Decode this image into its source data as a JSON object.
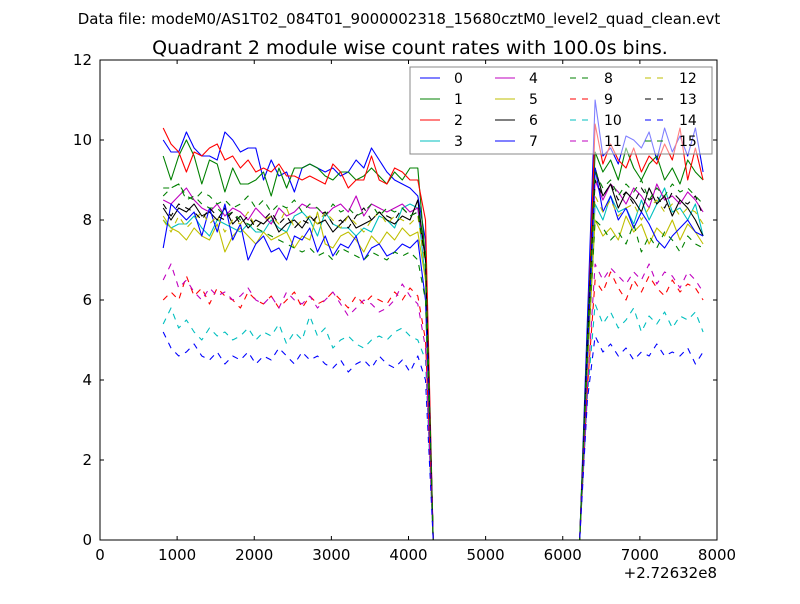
{
  "suptitle": "Data file: modeM0/AS1T02_084T01_9000002318_15680cztM0_level2_quad_clean.evt",
  "chart_data": {
    "type": "line",
    "title": "Quadrant 2 module wise count rates with 100.0s bins.",
    "xlabel": "",
    "ylabel": "",
    "x_offset_text": "+2.72632e8",
    "xlim": [
      0,
      8000
    ],
    "ylim": [
      0,
      12
    ],
    "xticks": [
      0,
      1000,
      2000,
      3000,
      4000,
      5000,
      6000,
      7000,
      8000
    ],
    "yticks": [
      0,
      2,
      4,
      6,
      8,
      10,
      12
    ],
    "x_start": 820,
    "x_step": 100,
    "grid": false,
    "legend_position": "top-right",
    "legend_columns": 4,
    "series": [
      {
        "name": "0",
        "color": "#0000ff",
        "dash": false,
        "values": [
          10.0,
          9.7,
          9.7,
          10.2,
          9.8,
          9.6,
          9.6,
          9.5,
          10.2,
          10.0,
          9.7,
          9.8,
          9.8,
          9.0,
          9.5,
          9.1,
          9.2,
          8.7,
          9.3,
          9.4,
          9.3,
          9.2,
          9.3,
          9.1,
          9.2,
          9.5,
          9.3,
          9.8,
          9.5,
          9.2,
          9.0,
          8.9,
          8.8,
          8.6,
          7.5,
          0,
          0,
          0,
          0,
          0,
          0,
          0,
          0,
          0,
          0,
          0,
          0,
          0,
          0,
          0,
          0,
          0,
          0,
          0,
          0,
          5.5,
          11.0,
          9.6,
          9.8,
          9.4,
          10.1,
          10.0,
          9.8,
          10.2,
          9.5,
          10.3,
          9.7,
          10.1,
          9.6,
          10.3,
          9.2
        ]
      },
      {
        "name": "1",
        "color": "#008000",
        "dash": false,
        "values": [
          9.6,
          9.0,
          9.6,
          10.0,
          9.6,
          8.9,
          9.5,
          9.4,
          8.7,
          9.3,
          8.9,
          8.9,
          9.0,
          9.2,
          8.6,
          9.3,
          8.8,
          9.3,
          9.3,
          9.4,
          9.3,
          9.1,
          9.0,
          9.2,
          9.2,
          9.0,
          9.1,
          9.3,
          9.1,
          8.9,
          9.2,
          9.0,
          9.3,
          9.3,
          7.0,
          0,
          0,
          0,
          0,
          0,
          0,
          0,
          0,
          0,
          0,
          0,
          0,
          0,
          0,
          0,
          0,
          0,
          0,
          0,
          0,
          5.0,
          9.7,
          9.2,
          9.5,
          9.0,
          9.8,
          9.3,
          9.0,
          9.4,
          9.6,
          9.0,
          9.3,
          8.9,
          9.5,
          9.2,
          9.0
        ]
      },
      {
        "name": "2",
        "color": "#ff0000",
        "dash": false,
        "values": [
          10.3,
          9.9,
          9.7,
          9.2,
          9.7,
          9.6,
          9.8,
          9.9,
          9.5,
          9.6,
          9.3,
          9.5,
          9.2,
          9.3,
          9.2,
          9.4,
          9.1,
          9.1,
          9.0,
          9.1,
          9.0,
          8.9,
          9.4,
          9.2,
          8.8,
          9.0,
          9.0,
          9.6,
          9.0,
          8.9,
          9.3,
          9.2,
          9.0,
          9.0,
          8.0,
          0,
          0,
          0,
          0,
          0,
          0,
          0,
          0,
          0,
          0,
          0,
          0,
          0,
          0,
          0,
          0,
          0,
          0,
          0,
          0,
          4.8,
          10.4,
          9.4,
          9.9,
          9.5,
          9.3,
          9.8,
          9.2,
          9.6,
          9.4,
          9.9,
          9.5,
          10.3,
          9.0,
          9.8,
          9.0
        ]
      },
      {
        "name": "3",
        "color": "#00bfbf",
        "dash": false,
        "values": [
          8.0,
          7.8,
          7.9,
          7.9,
          8.1,
          7.8,
          7.6,
          8.0,
          7.9,
          7.8,
          7.7,
          7.9,
          7.7,
          7.7,
          8.0,
          7.8,
          7.7,
          8.1,
          8.2,
          8.0,
          7.6,
          8.2,
          7.9,
          7.8,
          7.8,
          7.6,
          7.8,
          7.7,
          8.1,
          8.0,
          7.8,
          8.3,
          8.4,
          8.3,
          6.5,
          0,
          0,
          0,
          0,
          0,
          0,
          0,
          0,
          0,
          0,
          0,
          0,
          0,
          0,
          0,
          0,
          0,
          0,
          0,
          0,
          4.5,
          8.4,
          8.0,
          8.6,
          8.2,
          8.3,
          7.9,
          8.5,
          8.0,
          8.4,
          8.8,
          8.2,
          8.3,
          8.0,
          8.4,
          7.6
        ]
      },
      {
        "name": "4",
        "color": "#bf00bf",
        "dash": false,
        "values": [
          8.5,
          8.4,
          8.6,
          8.8,
          8.5,
          8.3,
          8.2,
          8.4,
          8.1,
          8.3,
          8.2,
          8.0,
          8.3,
          8.1,
          7.9,
          8.3,
          8.1,
          8.2,
          8.4,
          8.3,
          8.3,
          8.1,
          8.3,
          8.4,
          8.2,
          8.6,
          8.1,
          8.4,
          8.3,
          8.2,
          8.3,
          8.4,
          8.2,
          8.3,
          7.0,
          0,
          0,
          0,
          0,
          0,
          0,
          0,
          0,
          0,
          0,
          0,
          0,
          0,
          0,
          0,
          0,
          0,
          0,
          0,
          0,
          4.7,
          9.0,
          8.5,
          8.9,
          8.7,
          8.4,
          8.8,
          8.6,
          8.3,
          8.9,
          8.5,
          8.6,
          8.4,
          8.7,
          8.5,
          8.2
        ]
      },
      {
        "name": "5",
        "color": "#bfbf00",
        "dash": false,
        "values": [
          8.1,
          7.8,
          7.7,
          7.5,
          7.8,
          7.6,
          7.5,
          7.9,
          7.2,
          7.6,
          7.8,
          7.6,
          7.4,
          7.7,
          7.5,
          7.6,
          7.7,
          7.3,
          7.6,
          7.5,
          8.2,
          7.4,
          7.3,
          7.6,
          7.7,
          7.5,
          7.2,
          7.6,
          7.4,
          7.7,
          7.5,
          7.8,
          7.6,
          7.7,
          6.5,
          0,
          0,
          0,
          0,
          0,
          0,
          0,
          0,
          0,
          0,
          0,
          0,
          0,
          0,
          0,
          0,
          0,
          0,
          0,
          0,
          4.3,
          8.0,
          7.6,
          7.8,
          7.5,
          8.1,
          7.7,
          7.9,
          7.4,
          7.8,
          7.6,
          8.0,
          7.5,
          7.9,
          7.7,
          7.4
        ]
      },
      {
        "name": "6",
        "color": "#000000",
        "dash": false,
        "values": [
          8.3,
          8.0,
          8.3,
          8.2,
          8.4,
          8.1,
          8.2,
          8.0,
          8.3,
          7.9,
          8.1,
          7.8,
          8.0,
          7.9,
          8.1,
          7.7,
          7.9,
          8.0,
          7.8,
          8.1,
          7.9,
          8.0,
          7.7,
          7.9,
          8.1,
          7.8,
          7.9,
          8.0,
          8.2,
          8.0,
          7.9,
          8.1,
          8.0,
          8.5,
          7.0,
          0,
          0,
          0,
          0,
          0,
          0,
          0,
          0,
          0,
          0,
          0,
          0,
          0,
          0,
          0,
          0,
          0,
          0,
          0,
          0,
          5.0,
          9.3,
          8.6,
          8.9,
          8.3,
          8.7,
          8.5,
          8.2,
          8.8,
          8.4,
          8.6,
          8.1,
          8.5,
          8.3,
          8.0,
          7.6
        ]
      },
      {
        "name": "7",
        "color": "#0000ff",
        "dash": false,
        "values": [
          7.3,
          8.4,
          8.2,
          8.0,
          8.2,
          7.6,
          8.3,
          7.7,
          8.4,
          7.5,
          7.9,
          7.0,
          7.4,
          7.6,
          7.2,
          7.3,
          7.0,
          7.6,
          7.5,
          7.8,
          7.2,
          7.6,
          7.1,
          7.4,
          7.3,
          7.6,
          7.0,
          7.3,
          7.4,
          7.1,
          7.2,
          7.4,
          7.3,
          7.5,
          6.0,
          0,
          0,
          0,
          0,
          0,
          0,
          0,
          0,
          0,
          0,
          0,
          0,
          0,
          0,
          0,
          0,
          0,
          0,
          0,
          0,
          4.5,
          9.3,
          8.2,
          8.6,
          8.0,
          8.3,
          7.8,
          8.2,
          7.9,
          7.5,
          7.3,
          7.6,
          7.8,
          8.0,
          7.7,
          7.6
        ]
      },
      {
        "name": "8",
        "color": "#008000",
        "dash": true,
        "values": [
          8.8,
          8.8,
          8.9,
          8.5,
          8.6,
          8.4,
          8.3,
          8.3,
          8.1,
          8.2,
          8.0,
          7.9,
          7.8,
          7.7,
          7.6,
          7.5,
          7.4,
          7.3,
          7.2,
          7.3,
          7.1,
          7.2,
          7.0,
          7.3,
          7.2,
          7.1,
          7.0,
          7.2,
          7.1,
          7.0,
          7.2,
          7.1,
          7.2,
          7.0,
          6.0,
          0,
          0,
          0,
          0,
          0,
          0,
          0,
          0,
          0,
          0,
          0,
          0,
          0,
          0,
          0,
          0,
          0,
          0,
          0,
          0,
          4.5,
          8.0,
          7.8,
          7.5,
          7.7,
          7.4,
          7.9,
          7.2,
          7.6,
          7.3,
          7.7,
          7.5,
          7.2,
          7.6,
          7.4,
          7.3
        ]
      },
      {
        "name": "9",
        "color": "#ff0000",
        "dash": true,
        "values": [
          6.0,
          6.2,
          6.0,
          6.6,
          6.1,
          6.3,
          5.9,
          6.3,
          6.1,
          6.0,
          5.8,
          6.2,
          6.0,
          5.9,
          6.1,
          5.8,
          6.0,
          6.2,
          5.8,
          6.1,
          5.9,
          6.0,
          6.2,
          6.0,
          5.8,
          6.1,
          5.9,
          6.1,
          6.0,
          5.9,
          6.2,
          6.0,
          6.3,
          6.1,
          5.0,
          0,
          0,
          0,
          0,
          0,
          0,
          0,
          0,
          0,
          0,
          0,
          0,
          0,
          0,
          0,
          0,
          0,
          0,
          0,
          0,
          3.8,
          6.5,
          6.2,
          6.7,
          6.3,
          6.0,
          6.5,
          6.2,
          6.6,
          6.3,
          6.1,
          6.5,
          6.2,
          6.4,
          6.3,
          6.0
        ]
      },
      {
        "name": "10",
        "color": "#00bfbf",
        "dash": true,
        "values": [
          5.4,
          5.8,
          5.3,
          5.5,
          5.2,
          5.0,
          5.3,
          5.1,
          5.2,
          5.0,
          5.1,
          5.3,
          5.0,
          5.2,
          5.1,
          5.4,
          4.9,
          5.2,
          5.0,
          5.6,
          5.1,
          5.3,
          4.8,
          5.0,
          5.1,
          4.9,
          4.8,
          5.0,
          5.1,
          5.0,
          5.2,
          5.3,
          5.1,
          5.0,
          4.5,
          0,
          0,
          0,
          0,
          0,
          0,
          0,
          0,
          0,
          0,
          0,
          0,
          0,
          0,
          0,
          0,
          0,
          0,
          0,
          0,
          3.6,
          5.9,
          5.4,
          5.7,
          5.3,
          5.5,
          5.8,
          5.2,
          5.6,
          5.4,
          5.7,
          5.3,
          5.6,
          5.5,
          5.7,
          5.2
        ]
      },
      {
        "name": "11",
        "color": "#bf00bf",
        "dash": true,
        "values": [
          6.5,
          6.9,
          6.3,
          6.5,
          6.2,
          6.0,
          6.3,
          6.1,
          6.2,
          6.0,
          6.1,
          6.3,
          6.0,
          5.9,
          6.1,
          5.8,
          6.2,
          6.0,
          5.9,
          6.1,
          5.8,
          6.0,
          6.2,
          5.9,
          5.6,
          5.8,
          6.0,
          5.9,
          5.7,
          5.8,
          6.0,
          6.4,
          6.1,
          5.9,
          4.8,
          0,
          0,
          0,
          0,
          0,
          0,
          0,
          0,
          0,
          0,
          0,
          0,
          0,
          0,
          0,
          0,
          0,
          0,
          0,
          0,
          3.8,
          6.9,
          6.5,
          6.8,
          6.6,
          6.4,
          6.7,
          6.5,
          6.9,
          6.4,
          6.7,
          6.6,
          6.3,
          6.7,
          6.5,
          6.2
        ]
      },
      {
        "name": "12",
        "color": "#bfbf00",
        "dash": true,
        "values": [
          8.0,
          7.7,
          8.1,
          7.8,
          8.0,
          8.2,
          7.9,
          8.1,
          7.7,
          8.0,
          7.9,
          8.2,
          7.8,
          8.0,
          8.1,
          7.9,
          8.3,
          7.8,
          8.0,
          8.1,
          7.9,
          8.2,
          8.0,
          7.8,
          8.1,
          7.9,
          7.7,
          8.0,
          8.2,
          7.9,
          8.1,
          8.0,
          7.9,
          8.1,
          6.8,
          0,
          0,
          0,
          0,
          0,
          0,
          0,
          0,
          0,
          0,
          0,
          0,
          0,
          0,
          0,
          0,
          0,
          0,
          0,
          0,
          4.6,
          8.6,
          8.2,
          8.5,
          8.1,
          8.3,
          8.4,
          8.0,
          8.3,
          8.5,
          8.2,
          8.4,
          8.1,
          8.3,
          8.2,
          7.9
        ]
      },
      {
        "name": "13",
        "color": "#000000",
        "dash": true,
        "values": [
          8.4,
          8.1,
          8.4,
          8.3,
          8.2,
          8.0,
          8.3,
          8.1,
          8.0,
          8.2,
          7.9,
          8.1,
          7.8,
          8.0,
          8.2,
          7.9,
          8.1,
          7.8,
          8.0,
          7.9,
          8.1,
          8.2,
          7.9,
          8.0,
          7.8,
          8.1,
          8.3,
          8.0,
          8.2,
          8.1,
          8.0,
          8.3,
          8.1,
          8.2,
          7.0,
          0,
          0,
          0,
          0,
          0,
          0,
          0,
          0,
          0,
          0,
          0,
          0,
          0,
          0,
          0,
          0,
          0,
          0,
          0,
          0,
          4.8,
          9.0,
          8.6,
          8.9,
          8.5,
          8.7,
          8.4,
          8.8,
          8.5,
          8.6,
          8.3,
          8.7,
          8.5,
          8.4,
          8.6,
          8.1
        ]
      },
      {
        "name": "14",
        "color": "#0000ff",
        "dash": true,
        "values": [
          5.2,
          4.8,
          4.6,
          4.7,
          4.9,
          4.6,
          4.5,
          4.7,
          4.4,
          4.6,
          4.5,
          4.7,
          4.4,
          4.6,
          4.5,
          4.8,
          4.6,
          4.4,
          4.7,
          4.5,
          4.6,
          4.4,
          4.3,
          4.5,
          4.2,
          4.4,
          4.5,
          4.3,
          4.6,
          4.4,
          4.3,
          4.5,
          4.2,
          4.6,
          4.0,
          0,
          0,
          0,
          0,
          0,
          0,
          0,
          0,
          0,
          0,
          0,
          0,
          0,
          0,
          0,
          0,
          0,
          0,
          0,
          0,
          3.5,
          5.1,
          4.7,
          4.9,
          4.6,
          4.8,
          4.5,
          4.7,
          4.6,
          4.9,
          4.6,
          4.7,
          4.6,
          4.8,
          4.4,
          4.7
        ]
      },
      {
        "name": "15",
        "color": "#008000",
        "dash": true,
        "values": [
          8.6,
          8.8,
          8.9,
          8.6,
          8.5,
          8.7,
          8.6,
          8.4,
          8.5,
          8.3,
          8.4,
          8.6,
          8.3,
          8.5,
          8.2,
          8.4,
          8.3,
          8.5,
          8.2,
          8.4,
          8.3,
          8.1,
          8.4,
          8.2,
          8.3,
          8.1,
          8.2,
          8.4,
          8.1,
          8.3,
          8.2,
          8.3,
          8.1,
          8.2,
          7.2,
          0,
          0,
          0,
          0,
          0,
          0,
          0,
          0,
          0,
          0,
          0,
          0,
          0,
          0,
          0,
          0,
          0,
          0,
          0,
          0,
          5.0,
          9.2,
          8.8,
          9.0,
          8.6,
          8.9,
          8.7,
          9.0,
          8.5,
          8.8,
          8.6,
          8.9,
          8.7,
          8.8,
          8.6,
          8.4
        ]
      }
    ]
  }
}
